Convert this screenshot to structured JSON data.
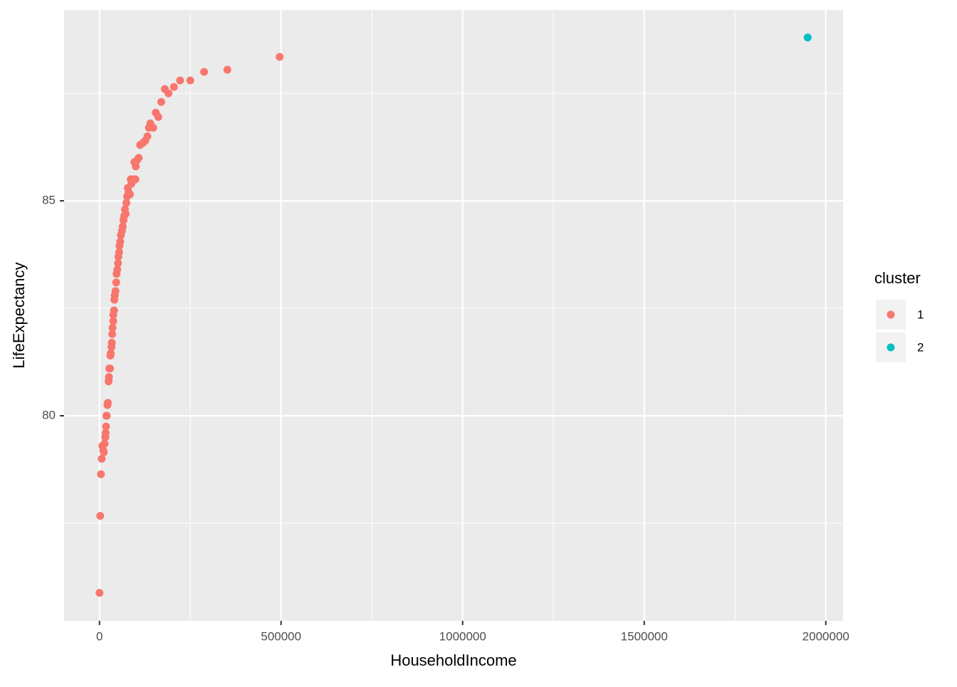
{
  "chart_data": {
    "type": "scatter",
    "x_label": "HouseholdIncome",
    "y_label": "LifeExpectancy",
    "legend_title": "cluster",
    "legend_position": "right",
    "grid": true,
    "xlim": [
      -97500,
      2047500
    ],
    "ylim": [
      75.23,
      89.44
    ],
    "xticks": [
      0,
      500000,
      1000000,
      1500000,
      2000000
    ],
    "x_minor_ticks": [
      250000,
      750000,
      1250000,
      1750000
    ],
    "yticks": [
      80,
      85
    ],
    "y_minor_ticks": [
      77.5,
      82.5,
      87.5
    ],
    "series": [
      {
        "name": "1",
        "color": "#F8766D",
        "x": [
          0,
          2000,
          4000,
          6000,
          8000,
          10000,
          12000,
          14000,
          16000,
          17000,
          18000,
          19000,
          20000,
          22000,
          23000,
          25000,
          26000,
          27000,
          29000,
          30000,
          31000,
          33000,
          34000,
          35000,
          36000,
          38000,
          38000,
          40000,
          41000,
          42000,
          44000,
          46000,
          47000,
          49000,
          51000,
          52000,
          54000,
          55000,
          57000,
          59000,
          62000,
          64000,
          66000,
          68000,
          72000,
          70000,
          74000,
          76000,
          80000,
          78000,
          84000,
          88000,
          86000,
          94000,
          99000,
          96000,
          100000,
          104000,
          108000,
          112000,
          120000,
          126000,
          132000,
          136000,
          140000,
          148000,
          155000,
          162000,
          170000,
          180000,
          190000,
          205000,
          222000,
          250000,
          288000,
          352000,
          496000
        ],
        "values": [
          75.88,
          77.67,
          78.64,
          79.0,
          79.3,
          79.2,
          79.15,
          79.35,
          79.5,
          79.6,
          79.75,
          80.0,
          80.0,
          80.25,
          80.3,
          80.8,
          80.9,
          81.1,
          81.1,
          81.4,
          81.45,
          81.6,
          81.7,
          81.9,
          82.05,
          82.2,
          82.35,
          82.45,
          82.7,
          82.8,
          82.9,
          83.1,
          83.3,
          83.4,
          83.55,
          83.7,
          83.8,
          83.95,
          84.05,
          84.2,
          84.3,
          84.4,
          84.55,
          84.65,
          84.7,
          84.8,
          84.95,
          85.1,
          85.2,
          85.3,
          85.15,
          85.4,
          85.5,
          85.5,
          85.5,
          85.9,
          85.8,
          85.95,
          86.0,
          86.3,
          86.35,
          86.4,
          86.5,
          86.7,
          86.8,
          86.7,
          87.05,
          86.95,
          87.3,
          87.6,
          87.5,
          87.65,
          87.8,
          87.8,
          88.0,
          88.05,
          88.35
        ]
      },
      {
        "name": "2",
        "color": "#00BFC4",
        "x": [
          1950000
        ],
        "values": [
          88.8
        ]
      }
    ]
  }
}
